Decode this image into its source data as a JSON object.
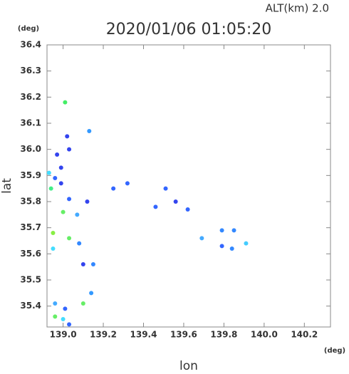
{
  "chart_data": {
    "type": "scatter",
    "title": "2020/01/06 01:05:20",
    "annotation": "ALT(km) 2.0",
    "x_label": "lon",
    "y_label": "lat",
    "x_unit": "(deg)",
    "y_unit": "(deg)",
    "xlim": [
      138.92,
      140.33
    ],
    "ylim": [
      35.32,
      36.4
    ],
    "xticks": [
      {
        "value": 139,
        "label": "139.0"
      },
      {
        "value": 139.2,
        "label": "139.2"
      },
      {
        "value": 139.4,
        "label": "139.4"
      },
      {
        "value": 139.6,
        "label": "139.6"
      },
      {
        "value": 139.8,
        "label": "139.8"
      },
      {
        "value": 140,
        "label": "140.0"
      },
      {
        "value": 140.2,
        "label": "140.2"
      }
    ],
    "yticks": [
      36.4,
      36.3,
      36.2,
      36.1,
      {
        "value": 36,
        "label": "36.0"
      },
      35.9,
      35.8,
      35.7,
      35.6,
      35.5,
      35.4
    ],
    "x": [
      139.01,
      138.97,
      139.13,
      138.93,
      138.96,
      138.99,
      138.94,
      139.0,
      139.03,
      139.12,
      138.95,
      139.03,
      139.08,
      138.95,
      139.1,
      139.15,
      139.14,
      138.96,
      139.01,
      139.1,
      139.0,
      139.03,
      138.96,
      139.32,
      139.51,
      139.62,
      139.69,
      139.79,
      139.79,
      139.84,
      139.85,
      139.91,
      139.02,
      139.03,
      138.99,
      139.25,
      139.46,
      139.56,
      139.07
    ],
    "values": [
      36.18,
      35.98,
      36.07,
      35.91,
      35.89,
      35.87,
      35.85,
      35.76,
      35.81,
      35.8,
      35.68,
      35.66,
      35.64,
      35.62,
      35.56,
      35.56,
      35.45,
      35.41,
      35.39,
      35.41,
      35.35,
      35.33,
      35.36,
      35.87,
      35.85,
      35.77,
      35.66,
      35.69,
      35.63,
      35.62,
      35.69,
      35.64,
      36.05,
      36.0,
      35.93,
      35.85,
      35.78,
      35.8,
      35.75
    ],
    "colors": [
      "#44ee66",
      "#3344ee",
      "#3399ff",
      "#44ddff",
      "#3366ff",
      "#3344ee",
      "#44ee88",
      "#66ee66",
      "#3366ff",
      "#3344ee",
      "#88ee44",
      "#66ee66",
      "#3388ff",
      "#44ddff",
      "#3344ee",
      "#3388ff",
      "#3399ff",
      "#44aaff",
      "#3366ff",
      "#66ee66",
      "#44ddff",
      "#3366ff",
      "#66ee66",
      "#3366ff",
      "#3366ff",
      "#3366ff",
      "#44aaff",
      "#3388ff",
      "#3366ff",
      "#3388ff",
      "#3388ff",
      "#44ccff",
      "#3344ee",
      "#3344ee",
      "#3344ee",
      "#3366ff",
      "#3366ff",
      "#3344ee",
      "#44aaff"
    ]
  }
}
